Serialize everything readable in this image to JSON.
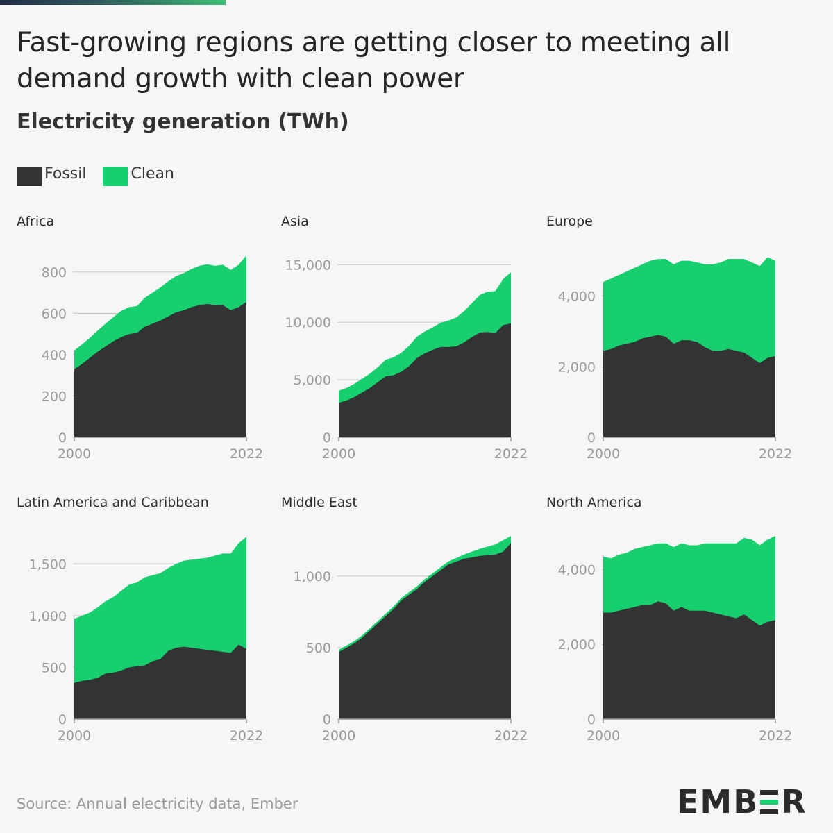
{
  "title": "Fast-growing regions are getting closer to meeting all demand growth with clean power",
  "subtitle": "Electricity generation (TWh)",
  "legend": [
    {
      "label": "Fossil",
      "color": "#333333"
    },
    {
      "label": "Clean",
      "color": "#17cf6e"
    }
  ],
  "source": "Source: Annual electricity data, Ember",
  "logo": {
    "before": "EMB",
    "after": "R"
  },
  "colors": {
    "fossil": "#333333",
    "clean": "#17cf6e",
    "gridline": "#cccccc",
    "axis": "#999999"
  },
  "chart_data": [
    {
      "type": "area",
      "title": "Africa",
      "x": [
        2000,
        2001,
        2002,
        2003,
        2004,
        2005,
        2006,
        2007,
        2008,
        2009,
        2010,
        2011,
        2012,
        2013,
        2014,
        2015,
        2016,
        2017,
        2018,
        2019,
        2020,
        2021,
        2022
      ],
      "series": [
        {
          "name": "Fossil",
          "values": [
            330,
            355,
            385,
            415,
            440,
            465,
            485,
            500,
            505,
            535,
            550,
            565,
            585,
            605,
            615,
            630,
            640,
            645,
            640,
            640,
            615,
            630,
            655
          ]
        },
        {
          "name": "Clean",
          "values": [
            90,
            95,
            97,
            102,
            110,
            117,
            127,
            130,
            130,
            140,
            150,
            160,
            170,
            175,
            180,
            185,
            190,
            192,
            190,
            195,
            195,
            205,
            225
          ]
        }
      ],
      "ylim": [
        0,
        880
      ],
      "yticks": [
        0,
        200,
        400,
        600,
        800
      ],
      "xticks": [
        2000,
        2022
      ]
    },
    {
      "type": "area",
      "title": "Asia",
      "x": [
        2000,
        2001,
        2002,
        2003,
        2004,
        2005,
        2006,
        2007,
        2008,
        2009,
        2010,
        2011,
        2012,
        2013,
        2014,
        2015,
        2016,
        2017,
        2018,
        2019,
        2020,
        2021,
        2022
      ],
      "series": [
        {
          "name": "Fossil",
          "values": [
            3000,
            3200,
            3500,
            3900,
            4300,
            4800,
            5300,
            5400,
            5700,
            6200,
            6900,
            7300,
            7600,
            7850,
            7850,
            7900,
            8250,
            8700,
            9100,
            9150,
            9050,
            9750,
            9900
          ]
        },
        {
          "name": "Clean",
          "values": [
            1050,
            1100,
            1150,
            1200,
            1250,
            1300,
            1450,
            1550,
            1650,
            1750,
            1850,
            1900,
            1950,
            2100,
            2300,
            2500,
            2700,
            2950,
            3250,
            3500,
            3650,
            4000,
            4450
          ]
        }
      ],
      "ylim": [
        0,
        15800
      ],
      "yticks": [
        0,
        5000,
        10000,
        15000
      ],
      "xticks": [
        2000,
        2022
      ]
    },
    {
      "type": "area",
      "title": "Europe",
      "x": [
        2000,
        2001,
        2002,
        2003,
        2004,
        2005,
        2006,
        2007,
        2008,
        2009,
        2010,
        2011,
        2012,
        2013,
        2014,
        2015,
        2016,
        2017,
        2018,
        2019,
        2020,
        2021,
        2022
      ],
      "series": [
        {
          "name": "Fossil",
          "values": [
            2450,
            2500,
            2600,
            2650,
            2700,
            2800,
            2850,
            2900,
            2850,
            2650,
            2750,
            2750,
            2700,
            2550,
            2450,
            2450,
            2500,
            2450,
            2400,
            2250,
            2100,
            2250,
            2300
          ]
        },
        {
          "name": "Clean",
          "values": [
            1950,
            2000,
            2000,
            2050,
            2100,
            2100,
            2150,
            2150,
            2200,
            2250,
            2250,
            2250,
            2250,
            2350,
            2450,
            2500,
            2550,
            2600,
            2650,
            2700,
            2750,
            2850,
            2700
          ]
        }
      ],
      "ylim": [
        0,
        5150
      ],
      "yticks": [
        0,
        2000,
        4000
      ],
      "xticks": [
        2000,
        2022
      ]
    },
    {
      "type": "area",
      "title": "Latin America and Caribbean",
      "x": [
        2000,
        2001,
        2002,
        2003,
        2004,
        2005,
        2006,
        2007,
        2008,
        2009,
        2010,
        2011,
        2012,
        2013,
        2014,
        2015,
        2016,
        2017,
        2018,
        2019,
        2020,
        2021,
        2022
      ],
      "series": [
        {
          "name": "Fossil",
          "values": [
            350,
            370,
            380,
            400,
            440,
            450,
            470,
            500,
            510,
            520,
            560,
            580,
            660,
            690,
            700,
            690,
            680,
            670,
            660,
            650,
            640,
            720,
            680
          ]
        },
        {
          "name": "Clean",
          "values": [
            620,
            630,
            650,
            680,
            700,
            730,
            770,
            800,
            810,
            850,
            830,
            830,
            800,
            810,
            830,
            850,
            870,
            890,
            920,
            950,
            960,
            980,
            1080
          ]
        }
      ],
      "ylim": [
        0,
        1770
      ],
      "yticks": [
        0,
        500,
        1000,
        1500
      ],
      "xticks": [
        2000,
        2022
      ]
    },
    {
      "type": "area",
      "title": "Middle East",
      "x": [
        2000,
        2001,
        2002,
        2003,
        2004,
        2005,
        2006,
        2007,
        2008,
        2009,
        2010,
        2011,
        2012,
        2013,
        2014,
        2015,
        2016,
        2017,
        2018,
        2019,
        2020,
        2021,
        2022
      ],
      "series": [
        {
          "name": "Fossil",
          "values": [
            470,
            500,
            530,
            570,
            620,
            670,
            720,
            770,
            830,
            870,
            910,
            960,
            1000,
            1040,
            1080,
            1100,
            1120,
            1130,
            1140,
            1145,
            1150,
            1170,
            1230
          ]
        },
        {
          "name": "Clean",
          "values": [
            15,
            15,
            15,
            16,
            16,
            16,
            17,
            17,
            17,
            18,
            18,
            18,
            19,
            20,
            22,
            25,
            30,
            40,
            50,
            60,
            70,
            80,
            50
          ]
        }
      ],
      "ylim": [
        0,
        1280
      ],
      "yticks": [
        0,
        500,
        1000
      ],
      "xticks": [
        2000,
        2022
      ]
    },
    {
      "type": "area",
      "title": "North America",
      "x": [
        2000,
        2001,
        2002,
        2003,
        2004,
        2005,
        2006,
        2007,
        2008,
        2009,
        2010,
        2011,
        2012,
        2013,
        2014,
        2015,
        2016,
        2017,
        2018,
        2019,
        2020,
        2021,
        2022
      ],
      "series": [
        {
          "name": "Fossil",
          "values": [
            2850,
            2850,
            2900,
            2950,
            3000,
            3050,
            3050,
            3150,
            3100,
            2900,
            3000,
            2900,
            2900,
            2900,
            2850,
            2800,
            2750,
            2700,
            2800,
            2650,
            2500,
            2600,
            2650
          ]
        },
        {
          "name": "Clean",
          "values": [
            1500,
            1450,
            1500,
            1500,
            1550,
            1550,
            1600,
            1550,
            1600,
            1700,
            1700,
            1750,
            1750,
            1800,
            1850,
            1900,
            1950,
            2000,
            2050,
            2150,
            2150,
            2200,
            2250
          ]
        }
      ],
      "ylim": [
        0,
        4900
      ],
      "yticks": [
        0,
        2000,
        4000
      ],
      "xticks": [
        2000,
        2022
      ]
    }
  ]
}
